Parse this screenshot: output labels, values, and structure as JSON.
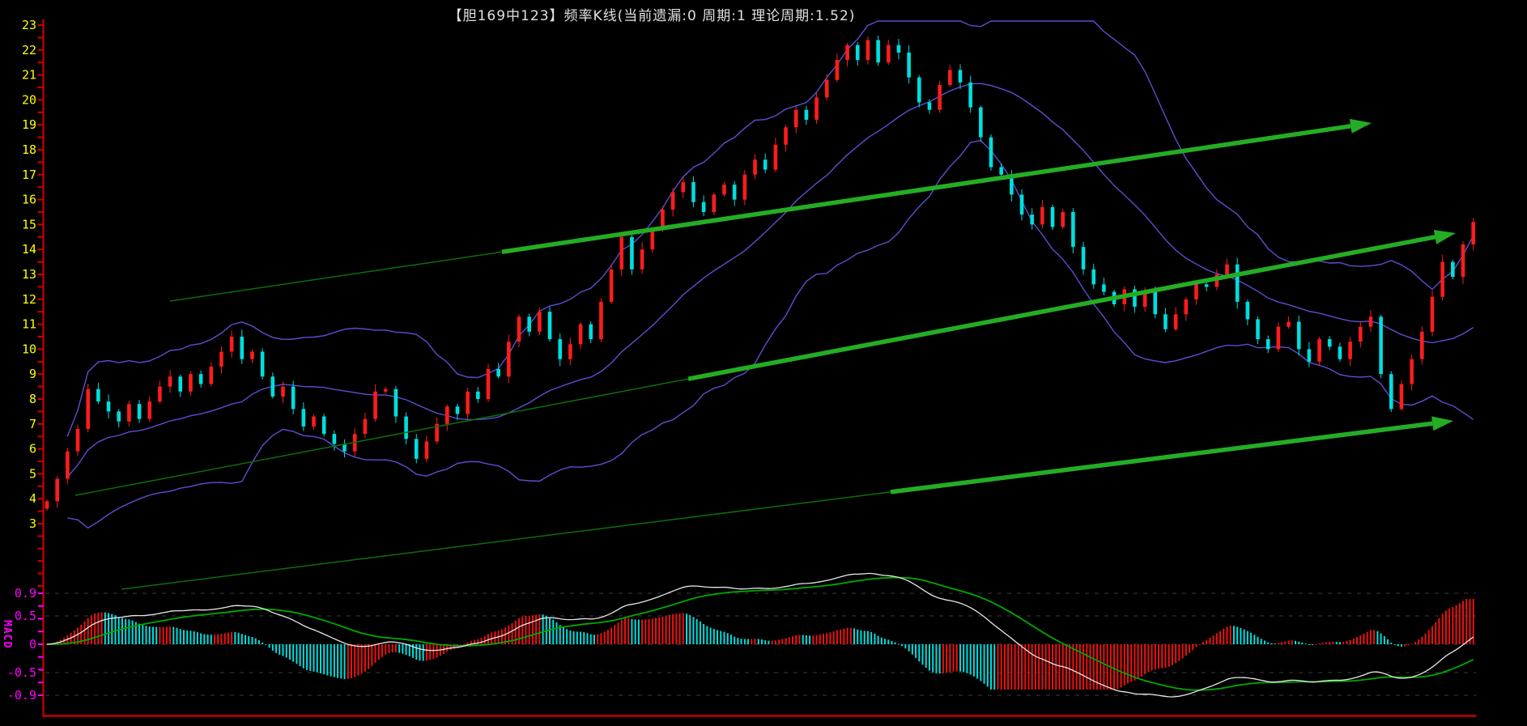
{
  "title": {
    "text": "【胆169中123】频率K线(当前遗漏:0  周期:1  理论周期:1.52)"
  },
  "colors": {
    "background": "#000000",
    "axis_red": "#c80000",
    "label_yellow": "#ffff00",
    "label_magenta": "#ff00ff",
    "grid": "#3d3d3d",
    "candle_up": "#ff1c1c",
    "candle_down": "#00dede",
    "bollinger": "#5b4fd0",
    "macd_dif_line": "#e8e8e8",
    "macd_dea_line": "#00a800",
    "hist_rising": "#ee1111",
    "hist_falling": "#00dede",
    "arrow_thick": "#24ad24",
    "arrow_thin": "#0c6e0c",
    "title_text": "#e0e0e0"
  },
  "chart_data": {
    "type": "candlestick+macd",
    "title": "【胆169中123】频率K线(当前遗漏:0  周期:1  理论周期:1.52)",
    "main_pane": {
      "ylim": [
        3,
        23
      ],
      "y_tick_labels": [
        "23",
        "22",
        "21",
        "20",
        "19",
        "18",
        "17",
        "16",
        "15",
        "14",
        "13",
        "12",
        "11",
        "10",
        "9",
        "8",
        "7",
        "6",
        "5",
        "4",
        "3"
      ],
      "first_open": 3.6,
      "closes": [
        3.9,
        4.8,
        5.9,
        6.8,
        8.4,
        7.9,
        7.5,
        7.1,
        7.8,
        7.2,
        7.9,
        8.5,
        8.9,
        8.3,
        9.0,
        8.6,
        9.3,
        9.9,
        10.5,
        9.6,
        9.9,
        8.9,
        8.1,
        8.5,
        7.6,
        6.9,
        7.3,
        6.6,
        6.2,
        5.9,
        6.6,
        7.2,
        8.3,
        8.4,
        7.3,
        6.4,
        5.6,
        6.3,
        7.0,
        7.7,
        7.4,
        8.3,
        8.0,
        9.2,
        8.9,
        10.3,
        11.3,
        10.7,
        11.5,
        10.4,
        9.6,
        10.2,
        11.0,
        10.4,
        11.9,
        13.2,
        14.5,
        13.2,
        14.0,
        14.8,
        15.6,
        16.3,
        16.7,
        15.9,
        15.5,
        16.2,
        16.6,
        16.0,
        17.0,
        17.6,
        17.2,
        18.2,
        18.9,
        19.6,
        19.2,
        20.1,
        20.8,
        21.6,
        22.2,
        21.6,
        22.4,
        21.5,
        22.2,
        21.9,
        20.9,
        19.9,
        19.6,
        20.6,
        21.2,
        20.7,
        19.7,
        18.5,
        17.3,
        17.0,
        16.2,
        15.4,
        15.0,
        15.7,
        14.9,
        15.5,
        14.1,
        13.2,
        12.6,
        12.3,
        11.8,
        12.4,
        11.7,
        12.3,
        11.4,
        10.8,
        11.4,
        12.0,
        12.6,
        12.5,
        13.0,
        13.4,
        11.9,
        11.2,
        10.4,
        10.0,
        10.9,
        11.1,
        10.0,
        9.5,
        10.4,
        10.1,
        9.6,
        10.3,
        10.9,
        11.3,
        9.0,
        7.6,
        8.6,
        9.6,
        10.7,
        12.1,
        13.5,
        12.9,
        14.2,
        15.1
      ],
      "indicators": {
        "bollinger": {
          "window": 20,
          "k": 2
        }
      }
    },
    "macd_pane": {
      "side_label": "MACD",
      "y_tick_labels": [
        "0.9",
        "0.5",
        "0",
        "-0.5",
        "-0.9"
      ],
      "y_tick_values": [
        0.9,
        0.5,
        0,
        -0.5,
        -0.9
      ],
      "params": {
        "fast": 12,
        "slow": 26,
        "signal": 9,
        "upsample": 3
      },
      "grid": "dashed"
    },
    "annotations": {
      "arrows": [
        {
          "tail": [
            210,
            372
          ],
          "head": [
            1694,
            152
          ],
          "thick_from": 620
        },
        {
          "tail": [
            93,
            612
          ],
          "head": [
            1798,
            288
          ],
          "thick_from": 850
        },
        {
          "tail": [
            150,
            728
          ],
          "head": [
            1795,
            520
          ],
          "thick_from": 1100
        }
      ]
    }
  }
}
